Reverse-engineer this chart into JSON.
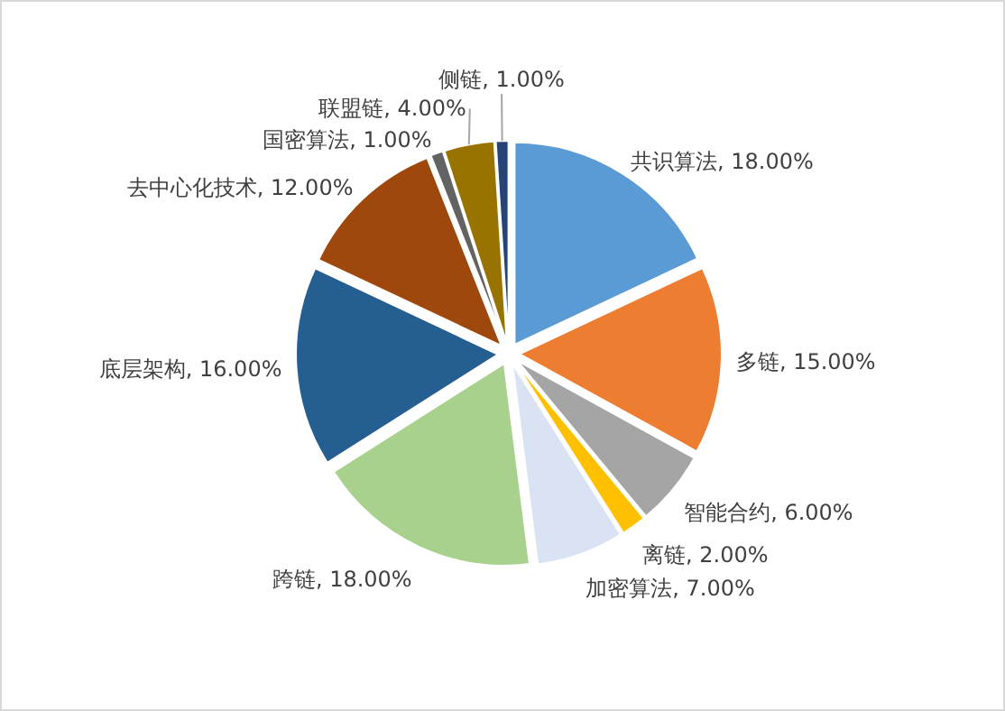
{
  "chart_data": {
    "type": "pie",
    "categories": [
      "共识算法",
      "多链",
      "智能合约",
      "离链",
      "加密算法",
      "跨链",
      "底层架构",
      "去中心化技术",
      "国密算法",
      "联盟链",
      "侧链"
    ],
    "values": [
      18,
      15,
      6,
      2,
      7,
      18,
      16,
      12,
      1,
      4,
      1
    ],
    "value_labels": [
      "18.00%",
      "15.00%",
      "6.00%",
      "2.00%",
      "7.00%",
      "18.00%",
      "16.00%",
      "12.00%",
      "1.00%",
      "4.00%",
      "1.00%"
    ],
    "colors": [
      "#5b9bd5",
      "#ed7d31",
      "#a5a5a5",
      "#ffc000",
      "#dae3f3",
      "#a9d18e",
      "#255e91",
      "#9e480e",
      "#636363",
      "#997300",
      "#264478"
    ],
    "legend": false
  }
}
